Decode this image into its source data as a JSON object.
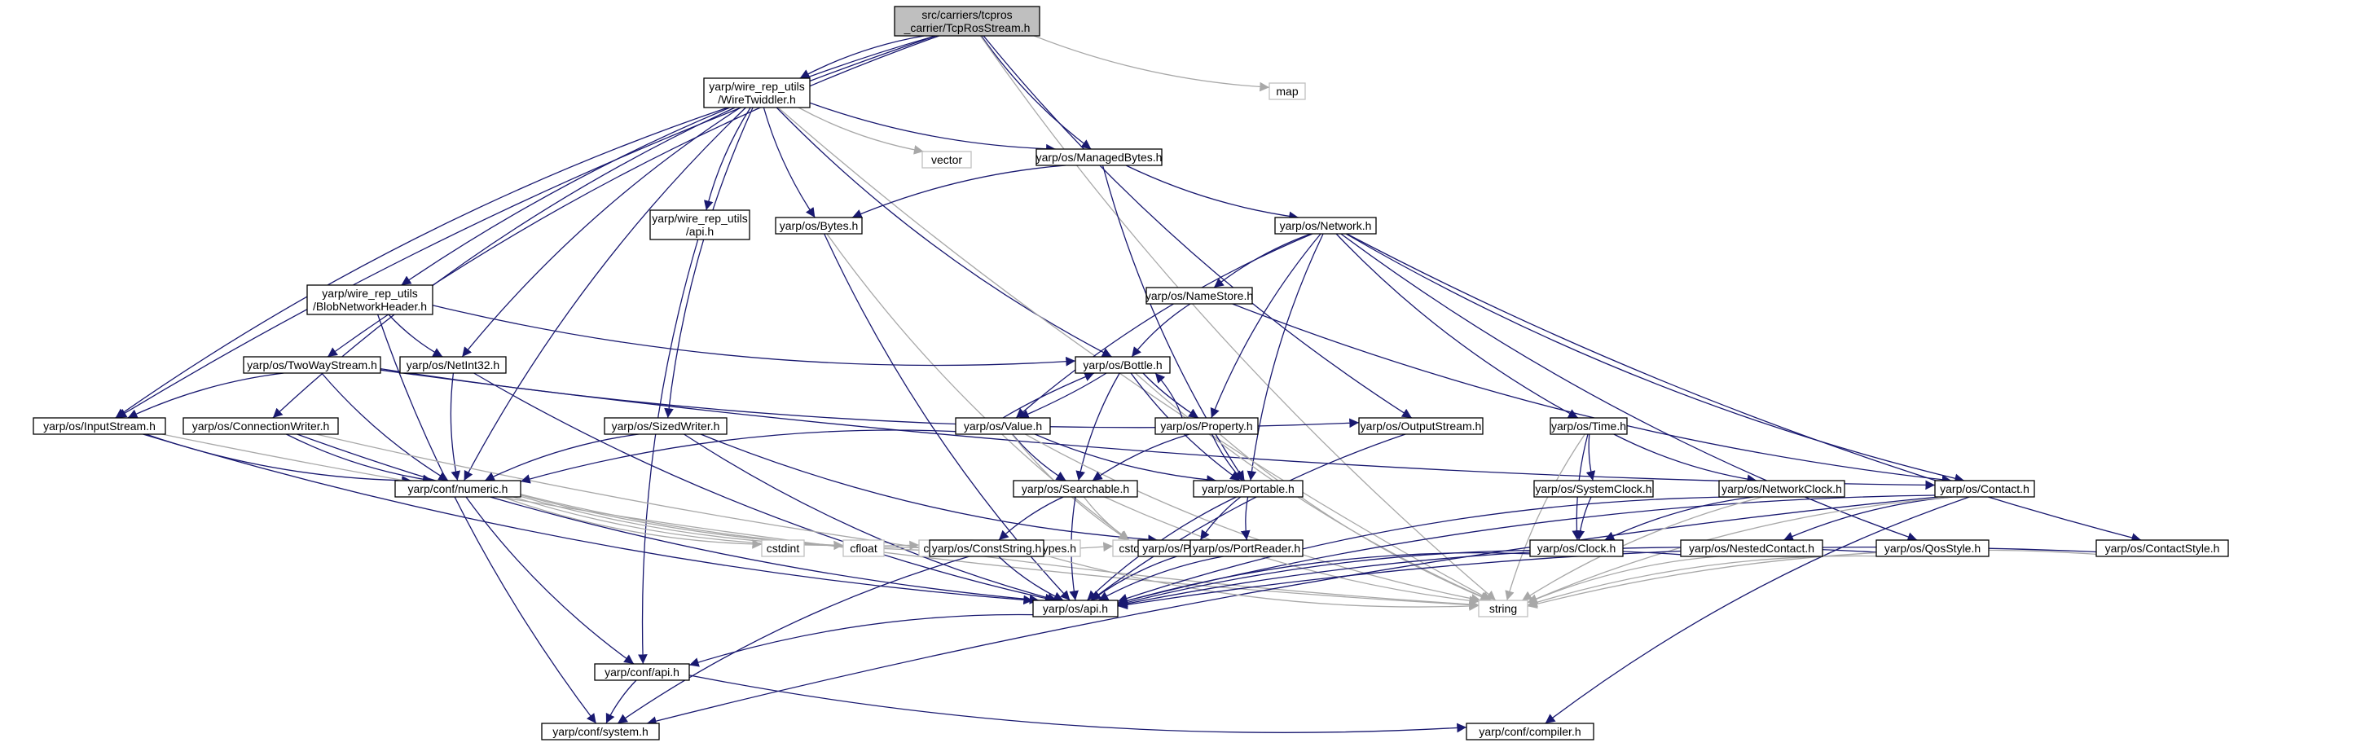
{
  "nodes": {
    "tcpros": {
      "lines": [
        "src/carriers/tcpros",
        "_carrier/TcpRosStream.h"
      ],
      "kind": "root"
    },
    "map": {
      "lines": [
        "map"
      ],
      "kind": "ext"
    },
    "wiretw": {
      "lines": [
        "yarp/wire_rep_utils",
        "/WireTwiddler.h"
      ],
      "kind": "int"
    },
    "vector": {
      "lines": [
        "vector"
      ],
      "kind": "ext"
    },
    "managed": {
      "lines": [
        "yarp/os/ManagedBytes.h"
      ],
      "kind": "int"
    },
    "wireapi": {
      "lines": [
        "yarp/wire_rep_utils",
        "/api.h"
      ],
      "kind": "int"
    },
    "bytes": {
      "lines": [
        "yarp/os/Bytes.h"
      ],
      "kind": "int"
    },
    "network": {
      "lines": [
        "yarp/os/Network.h"
      ],
      "kind": "int"
    },
    "blobnet": {
      "lines": [
        "yarp/wire_rep_utils",
        "/BlobNetworkHeader.h"
      ],
      "kind": "int"
    },
    "namestore": {
      "lines": [
        "yarp/os/NameStore.h"
      ],
      "kind": "int"
    },
    "twoway": {
      "lines": [
        "yarp/os/TwoWayStream.h"
      ],
      "kind": "int"
    },
    "netint32": {
      "lines": [
        "yarp/os/NetInt32.h"
      ],
      "kind": "int"
    },
    "bottle": {
      "lines": [
        "yarp/os/Bottle.h"
      ],
      "kind": "int"
    },
    "inputstream": {
      "lines": [
        "yarp/os/InputStream.h"
      ],
      "kind": "int"
    },
    "connwriter": {
      "lines": [
        "yarp/os/ConnectionWriter.h"
      ],
      "kind": "int"
    },
    "sizedwriter": {
      "lines": [
        "yarp/os/SizedWriter.h"
      ],
      "kind": "int"
    },
    "value": {
      "lines": [
        "yarp/os/Value.h"
      ],
      "kind": "int"
    },
    "property": {
      "lines": [
        "yarp/os/Property.h"
      ],
      "kind": "int"
    },
    "outputstream": {
      "lines": [
        "yarp/os/OutputStream.h"
      ],
      "kind": "int"
    },
    "time": {
      "lines": [
        "yarp/os/Time.h"
      ],
      "kind": "int"
    },
    "contact": {
      "lines": [
        "yarp/os/Contact.h"
      ],
      "kind": "int"
    },
    "numeric": {
      "lines": [
        "yarp/conf/numeric.h"
      ],
      "kind": "int"
    },
    "searchable": {
      "lines": [
        "yarp/os/Searchable.h"
      ],
      "kind": "int"
    },
    "portable": {
      "lines": [
        "yarp/os/Portable.h"
      ],
      "kind": "int"
    },
    "sysclock": {
      "lines": [
        "yarp/os/SystemClock.h"
      ],
      "kind": "int"
    },
    "netclock": {
      "lines": [
        "yarp/os/NetworkClock.h"
      ],
      "kind": "int"
    },
    "cstdint": {
      "lines": [
        "cstdint"
      ],
      "kind": "ext"
    },
    "cfloat": {
      "lines": [
        "cfloat"
      ],
      "kind": "ext"
    },
    "cinttypes": {
      "lines": [
        "cinttypes"
      ],
      "kind": "ext"
    },
    "systypes": {
      "lines": [
        "sys/types.h"
      ],
      "kind": "ext"
    },
    "cstddef": {
      "lines": [
        "cstddef"
      ],
      "kind": "ext"
    },
    "portwriter": {
      "lines": [
        "yarp/os/PortWriter.h"
      ],
      "kind": "int"
    },
    "conststring": {
      "lines": [
        "yarp/os/ConstString.h"
      ],
      "kind": "int"
    },
    "portreader": {
      "lines": [
        "yarp/os/PortReader.h"
      ],
      "kind": "int"
    },
    "clock": {
      "lines": [
        "yarp/os/Clock.h"
      ],
      "kind": "int"
    },
    "nested": {
      "lines": [
        "yarp/os/NestedContact.h"
      ],
      "kind": "int"
    },
    "qos": {
      "lines": [
        "yarp/os/QosStyle.h"
      ],
      "kind": "int"
    },
    "contactstyle": {
      "lines": [
        "yarp/os/ContactStyle.h"
      ],
      "kind": "int"
    },
    "osapi": {
      "lines": [
        "yarp/os/api.h"
      ],
      "kind": "int"
    },
    "string": {
      "lines": [
        "string"
      ],
      "kind": "ext"
    },
    "confapi": {
      "lines": [
        "yarp/conf/api.h"
      ],
      "kind": "int"
    },
    "system": {
      "lines": [
        "yarp/conf/system.h"
      ],
      "kind": "int"
    },
    "compiler": {
      "lines": [
        "yarp/conf/compiler.h"
      ],
      "kind": "int"
    }
  },
  "edges": [
    [
      "tcpros",
      "map"
    ],
    [
      "tcpros",
      "wiretw"
    ],
    [
      "tcpros",
      "managed"
    ],
    [
      "tcpros",
      "blobnet"
    ],
    [
      "tcpros",
      "twoway"
    ],
    [
      "tcpros",
      "inputstream"
    ],
    [
      "tcpros",
      "outputstream"
    ],
    [
      "tcpros",
      "string"
    ],
    [
      "wiretw",
      "vector"
    ],
    [
      "wiretw",
      "managed"
    ],
    [
      "wiretw",
      "wireapi"
    ],
    [
      "wiretw",
      "bytes"
    ],
    [
      "wiretw",
      "netint32"
    ],
    [
      "wiretw",
      "bottle"
    ],
    [
      "wiretw",
      "inputstream"
    ],
    [
      "wiretw",
      "connwriter"
    ],
    [
      "wiretw",
      "sizedwriter"
    ],
    [
      "wiretw",
      "numeric"
    ],
    [
      "wiretw",
      "string"
    ],
    [
      "managed",
      "bytes"
    ],
    [
      "managed",
      "network"
    ],
    [
      "managed",
      "portable"
    ],
    [
      "wireapi",
      "confapi"
    ],
    [
      "bytes",
      "cstddef"
    ],
    [
      "bytes",
      "osapi"
    ],
    [
      "network",
      "namestore"
    ],
    [
      "network",
      "value"
    ],
    [
      "network",
      "property"
    ],
    [
      "network",
      "portable"
    ],
    [
      "network",
      "time"
    ],
    [
      "network",
      "contact"
    ],
    [
      "network",
      "qos"
    ],
    [
      "network",
      "contactstyle"
    ],
    [
      "blobnet",
      "netint32"
    ],
    [
      "blobnet",
      "bottle"
    ],
    [
      "blobnet",
      "system"
    ],
    [
      "namestore",
      "bottle"
    ],
    [
      "namestore",
      "contact"
    ],
    [
      "twoway",
      "inputstream"
    ],
    [
      "twoway",
      "outputstream"
    ],
    [
      "twoway",
      "contact"
    ],
    [
      "twoway",
      "numeric"
    ],
    [
      "netint32",
      "numeric"
    ],
    [
      "netint32",
      "osapi"
    ],
    [
      "bottle",
      "value"
    ],
    [
      "bottle",
      "property"
    ],
    [
      "bottle",
      "searchable"
    ],
    [
      "bottle",
      "portable"
    ],
    [
      "bottle",
      "string"
    ],
    [
      "inputstream",
      "numeric"
    ],
    [
      "inputstream",
      "osapi"
    ],
    [
      "inputstream",
      "string"
    ],
    [
      "connwriter",
      "numeric"
    ],
    [
      "connwriter",
      "osapi"
    ],
    [
      "connwriter",
      "string"
    ],
    [
      "sizedwriter",
      "numeric"
    ],
    [
      "sizedwriter",
      "portwriter"
    ],
    [
      "sizedwriter",
      "osapi"
    ],
    [
      "value",
      "bottle"
    ],
    [
      "value",
      "searchable"
    ],
    [
      "value",
      "portable"
    ],
    [
      "value",
      "numeric"
    ],
    [
      "value",
      "cstddef"
    ],
    [
      "value",
      "string"
    ],
    [
      "property",
      "bottle"
    ],
    [
      "property",
      "searchable"
    ],
    [
      "property",
      "portable"
    ],
    [
      "property",
      "string"
    ],
    [
      "outputstream",
      "osapi"
    ],
    [
      "time",
      "sysclock"
    ],
    [
      "time",
      "netclock"
    ],
    [
      "time",
      "clock"
    ],
    [
      "time",
      "string"
    ],
    [
      "contact",
      "nested"
    ],
    [
      "contact",
      "osapi"
    ],
    [
      "contact",
      "string"
    ],
    [
      "contact",
      "system"
    ],
    [
      "contact",
      "compiler"
    ],
    [
      "numeric",
      "cstdint"
    ],
    [
      "numeric",
      "cfloat"
    ],
    [
      "numeric",
      "cinttypes"
    ],
    [
      "numeric",
      "systypes"
    ],
    [
      "numeric",
      "cstddef"
    ],
    [
      "numeric",
      "confapi"
    ],
    [
      "searchable",
      "conststring"
    ],
    [
      "searchable",
      "osapi"
    ],
    [
      "searchable",
      "cstddef"
    ],
    [
      "searchable",
      "string"
    ],
    [
      "portable",
      "portwriter"
    ],
    [
      "portable",
      "portreader"
    ],
    [
      "portable",
      "osapi"
    ],
    [
      "sysclock",
      "clock"
    ],
    [
      "netclock",
      "clock"
    ],
    [
      "netclock",
      "osapi"
    ],
    [
      "netclock",
      "string"
    ],
    [
      "portwriter",
      "osapi"
    ],
    [
      "conststring",
      "osapi"
    ],
    [
      "conststring",
      "string"
    ],
    [
      "conststring",
      "system"
    ],
    [
      "portreader",
      "osapi"
    ],
    [
      "clock",
      "osapi"
    ],
    [
      "nested",
      "osapi"
    ],
    [
      "nested",
      "string"
    ],
    [
      "qos",
      "osapi"
    ],
    [
      "qos",
      "string"
    ],
    [
      "contactstyle",
      "osapi"
    ],
    [
      "contactstyle",
      "string"
    ],
    [
      "osapi",
      "confapi"
    ],
    [
      "confapi",
      "system"
    ],
    [
      "confapi",
      "compiler"
    ]
  ]
}
